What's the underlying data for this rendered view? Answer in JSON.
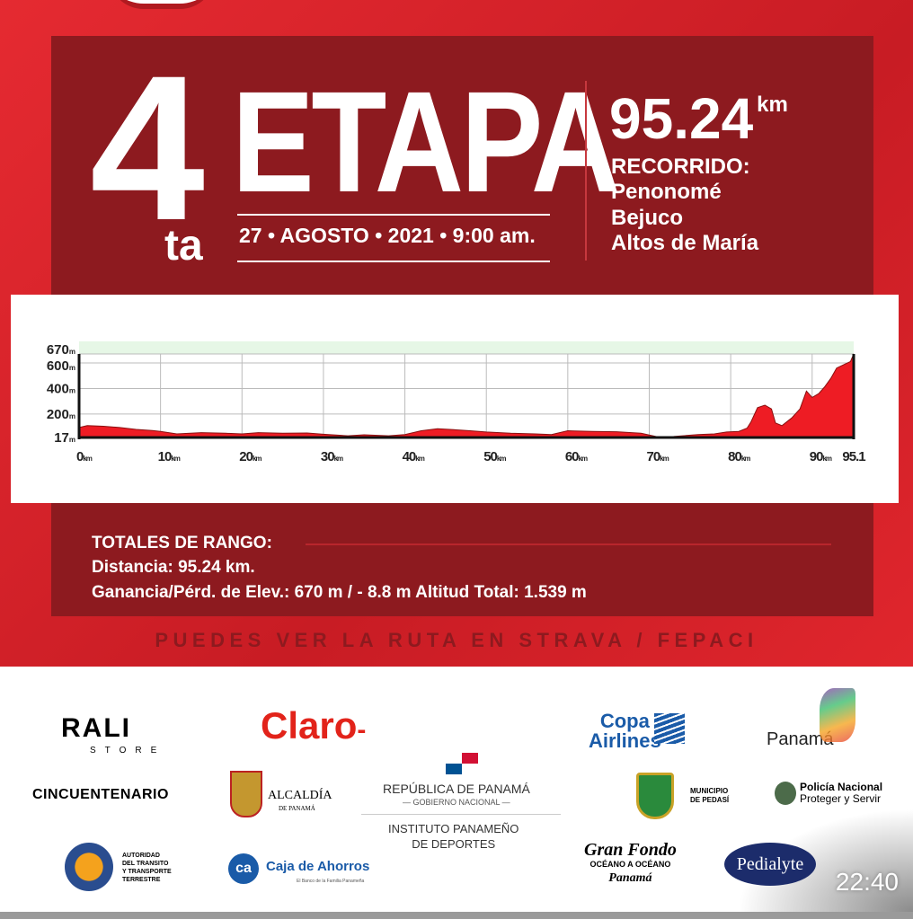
{
  "header": {
    "stage_number": "4",
    "stage_suffix": "ta",
    "stage_word": "ETAPA",
    "date_line": "27 • AGOSTO • 2021 • 9:00 am.",
    "distance": "95.24",
    "distance_unit": "km",
    "route_label": "RECORRIDO:",
    "route": [
      "Penonomé",
      "Bejuco",
      "Altos de María"
    ]
  },
  "chart_data": {
    "type": "area",
    "x_ticks": [
      "0",
      "10",
      "20",
      "30",
      "40",
      "50",
      "60",
      "70",
      "80",
      "90",
      "95.1"
    ],
    "x_unit": "km",
    "y_ticks": [
      "17",
      "200",
      "400",
      "600",
      "670"
    ],
    "y_unit": "m",
    "xlim": [
      0,
      95.1
    ],
    "ylim": [
      17,
      670
    ],
    "grid": true,
    "fill_color": "#ee1c24",
    "x": [
      0,
      1,
      3,
      5,
      7,
      9,
      10,
      12,
      15,
      18,
      20,
      22,
      25,
      28,
      30,
      33,
      35,
      38,
      40,
      42,
      44,
      46,
      48,
      50,
      53,
      56,
      58,
      60,
      63,
      66,
      69,
      71,
      73,
      76,
      78,
      79.5,
      81,
      82,
      82.5,
      83.3,
      84.2,
      85,
      85.5,
      86.3,
      87.5,
      88.5,
      89.3,
      90,
      90.8,
      91.5,
      92.3,
      93,
      94,
      94.7,
      95.1
    ],
    "y": [
      95,
      110,
      105,
      95,
      80,
      72,
      65,
      45,
      55,
      50,
      45,
      55,
      50,
      52,
      42,
      30,
      38,
      30,
      40,
      70,
      85,
      78,
      70,
      60,
      50,
      45,
      40,
      70,
      65,
      62,
      50,
      22,
      25,
      40,
      45,
      60,
      65,
      90,
      140,
      250,
      270,
      240,
      130,
      110,
      170,
      240,
      380,
      330,
      360,
      410,
      480,
      560,
      590,
      610,
      670
    ]
  },
  "totals": {
    "title": "TOTALES DE RANGO:",
    "distance": "Distancia: 95.24 km.",
    "elevation": "Ganancia/Pérd. de Elev.: 670 m / - 8.8 m  Altitud Total: 1.539 m"
  },
  "strava": "PUEDES VER LA RUTA EN  STRAVA / FEPACI",
  "sponsors": {
    "rali": "RALI",
    "rali_sub": "STORE",
    "claro": "Claro",
    "copa1": "Copa",
    "copa2": "Airlines",
    "panama_tourism": "Panamá",
    "cincuentenario": "CINCUENTENARIO",
    "alcaldia": "ALCALDÍA",
    "alcaldia_sub": "DE PANAMÁ",
    "republica": "REPÚBLICA DE PANAMÁ",
    "gobierno": "— GOBIERNO NACIONAL —",
    "instituto1": "INSTITUTO PANAMEÑO",
    "instituto2": "DE DEPORTES",
    "pedasi1": "MUNICIPIO",
    "pedasi2": "DE PEDASÍ",
    "policia1": "Policía Nacional",
    "policia2": "Proteger y Servir",
    "att": [
      "AUTORIDAD",
      "DEL TRANSITO",
      "Y TRANSPORTE",
      "TERRESTRE"
    ],
    "caja": "Caja de Ahorros",
    "caja_sub": "El Banco de la Familia Panameña",
    "granfondo1": "Gran Fondo",
    "granfondo2": "OCÉANO A OCÉANO",
    "granfondo3": "Panamá",
    "pedialyte": "Pedialyte"
  },
  "status": {
    "time": "22:40"
  }
}
